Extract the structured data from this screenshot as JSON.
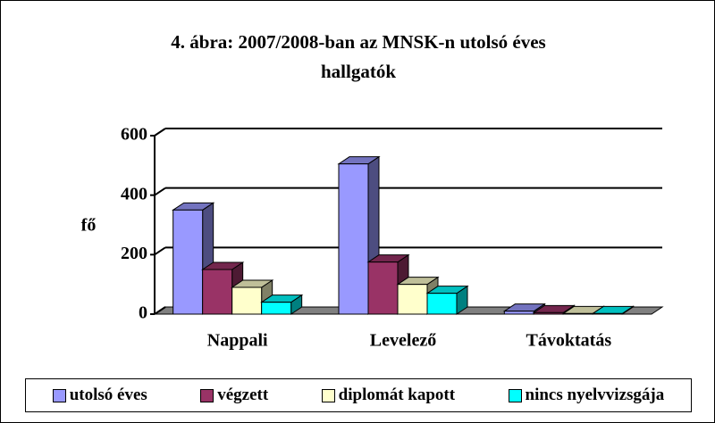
{
  "chart_data": {
    "type": "bar3d",
    "title": "4. ábra: 2007/2008-ban az MNSK-n utolsó éves hallgatók",
    "ylabel": "fő",
    "categories": [
      "Nappali",
      "Levelező",
      "Távoktatás"
    ],
    "series": [
      {
        "name": "utolsó éves",
        "color": "#9999ff",
        "values": [
          350,
          505,
          10
        ]
      },
      {
        "name": "végzett",
        "color": "#993366",
        "values": [
          150,
          175,
          5
        ]
      },
      {
        "name": "diplomát kapott",
        "color": "#ffffcc",
        "values": [
          90,
          100,
          2
        ]
      },
      {
        "name": "nincs nyelvvizsgája",
        "color": "#00ffff",
        "values": [
          40,
          70,
          2
        ]
      }
    ],
    "ylim": [
      0,
      600
    ],
    "yticks": [
      0,
      200,
      400,
      600
    ],
    "grid": true,
    "legend": "bottom"
  }
}
